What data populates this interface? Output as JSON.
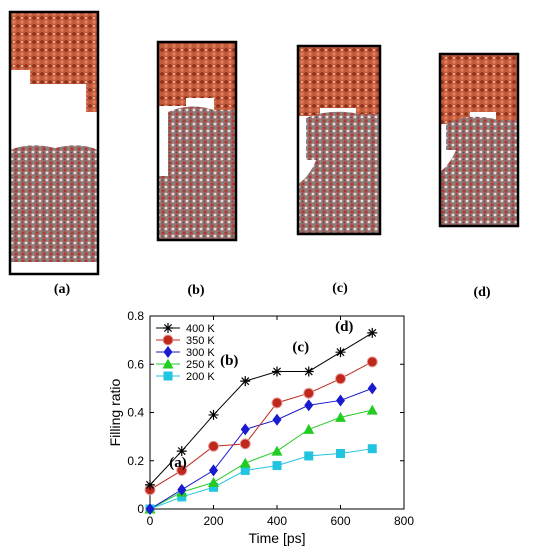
{
  "panels": [
    {
      "label": "(a)",
      "fill_top": 0.4,
      "fill_bottom": 0.55
    },
    {
      "label": "(b)",
      "fill_top": 0.23,
      "fill_bottom": 0.77
    },
    {
      "label": "(c)",
      "fill_top": 0.27,
      "fill_bottom": 0.73
    },
    {
      "label": "(d)",
      "fill_top": 0.22,
      "fill_bottom": 0.78
    }
  ],
  "colors": {
    "solid_top": "#a5422a",
    "droplet": "#8c5a58",
    "frame": "#000000"
  },
  "chart_data": {
    "type": "line",
    "xlabel": "Time [ps]",
    "ylabel": "Filling ratio",
    "xlim": [
      0,
      800
    ],
    "ylim": [
      0,
      0.8
    ],
    "xticks": [
      "0",
      "200",
      "400",
      "600",
      "800"
    ],
    "yticks": [
      "0",
      "0.2",
      "0.4",
      "0.6",
      "0.8"
    ],
    "x": [
      0,
      100,
      200,
      300,
      400,
      500,
      600,
      700
    ],
    "series": [
      {
        "name": "400 K",
        "color": "#000000",
        "marker": "asterisk",
        "values": [
          0.1,
          0.24,
          0.39,
          0.53,
          0.57,
          0.57,
          0.65,
          0.73
        ]
      },
      {
        "name": "350 K",
        "color": "#c0281c",
        "marker": "circle",
        "values": [
          0.08,
          0.16,
          0.26,
          0.27,
          0.44,
          0.48,
          0.54,
          0.61
        ]
      },
      {
        "name": "300 K",
        "color": "#1a1ad0",
        "marker": "diamond",
        "values": [
          0.0,
          0.08,
          0.16,
          0.33,
          0.37,
          0.43,
          0.45,
          0.5
        ]
      },
      {
        "name": "250 K",
        "color": "#22cc22",
        "marker": "triangle",
        "values": [
          0.0,
          0.07,
          0.11,
          0.19,
          0.24,
          0.33,
          0.38,
          0.41
        ]
      },
      {
        "name": "200 K",
        "color": "#22c4e0",
        "marker": "square",
        "values": [
          0.0,
          0.05,
          0.09,
          0.16,
          0.18,
          0.22,
          0.23,
          0.25
        ]
      }
    ],
    "annotations": [
      {
        "text": "(a)",
        "x": 0
      },
      {
        "text": "(b)",
        "x": 300
      },
      {
        "text": "(c)",
        "x": 500
      },
      {
        "text": "(d)",
        "x": 700
      }
    ],
    "legend": "top-left",
    "grid": false
  }
}
